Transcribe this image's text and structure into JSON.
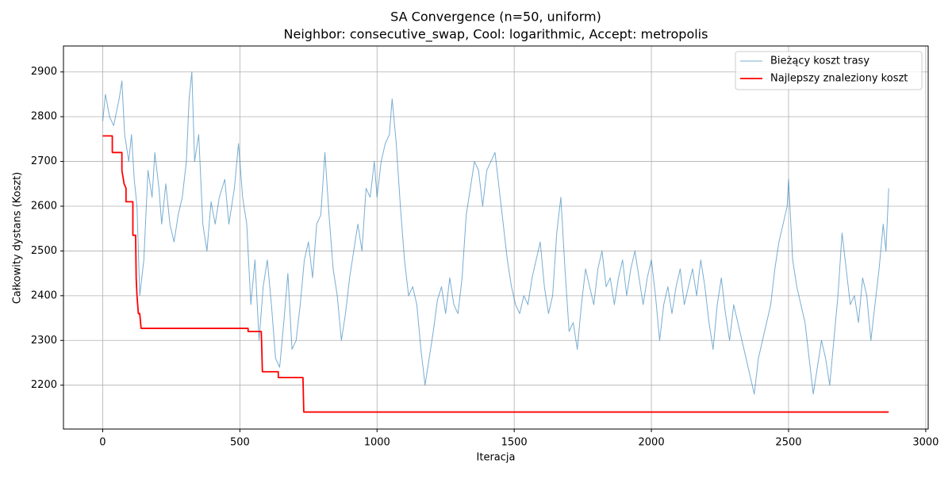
{
  "chart_data": {
    "type": "line",
    "title": "SA Convergence (n=50, uniform)",
    "subtitle": "Neighbor: consecutive_swap, Cool: logarithmic, Accept: metropolis",
    "xlabel": "Iteracja",
    "ylabel": "Całkowity dystans (Koszt)",
    "xlim": [
      -143,
      3009
    ],
    "ylim": [
      2102,
      2958
    ],
    "xticks": [
      0,
      500,
      1000,
      1500,
      2000,
      2500,
      3000
    ],
    "yticks": [
      2200,
      2300,
      2400,
      2500,
      2600,
      2700,
      2800,
      2900
    ],
    "grid": true,
    "legend": "upper right",
    "series": [
      {
        "name": "Bieżący koszt trasy",
        "color": "#1f77b4",
        "x": [
          0,
          10,
          25,
          40,
          60,
          70,
          80,
          95,
          105,
          115,
          125,
          135,
          150,
          165,
          180,
          190,
          205,
          215,
          230,
          245,
          260,
          275,
          290,
          305,
          315,
          325,
          335,
          350,
          365,
          380,
          395,
          410,
          425,
          445,
          460,
          480,
          495,
          510,
          525,
          540,
          555,
          570,
          585,
          600,
          615,
          630,
          645,
          660,
          675,
          690,
          705,
          720,
          735,
          750,
          765,
          780,
          795,
          810,
          825,
          840,
          855,
          870,
          885,
          900,
          915,
          930,
          945,
          960,
          975,
          990,
          1000,
          1015,
          1030,
          1045,
          1055,
          1070,
          1085,
          1100,
          1115,
          1130,
          1145,
          1160,
          1175,
          1190,
          1205,
          1220,
          1235,
          1250,
          1265,
          1280,
          1295,
          1310,
          1325,
          1340,
          1355,
          1370,
          1385,
          1400,
          1415,
          1430,
          1445,
          1460,
          1475,
          1490,
          1505,
          1520,
          1535,
          1550,
          1565,
          1580,
          1595,
          1610,
          1625,
          1640,
          1655,
          1670,
          1685,
          1700,
          1715,
          1730,
          1745,
          1760,
          1775,
          1790,
          1805,
          1820,
          1835,
          1850,
          1865,
          1880,
          1895,
          1910,
          1925,
          1940,
          1955,
          1970,
          1985,
          2000,
          2015,
          2030,
          2045,
          2060,
          2075,
          2090,
          2105,
          2120,
          2135,
          2150,
          2165,
          2180,
          2195,
          2210,
          2225,
          2240,
          2255,
          2270,
          2285,
          2300,
          2315,
          2330,
          2345,
          2360,
          2375,
          2390,
          2405,
          2420,
          2435,
          2450,
          2465,
          2480,
          2495,
          2500,
          2515,
          2530,
          2545,
          2560,
          2575,
          2590,
          2605,
          2620,
          2635,
          2650,
          2665,
          2680,
          2695,
          2710,
          2725,
          2740,
          2755,
          2770,
          2785,
          2800,
          2815,
          2830,
          2845,
          2855,
          2865
        ],
        "values": [
          2790,
          2850,
          2800,
          2780,
          2840,
          2880,
          2760,
          2700,
          2760,
          2660,
          2600,
          2400,
          2480,
          2680,
          2620,
          2720,
          2640,
          2560,
          2650,
          2560,
          2520,
          2580,
          2620,
          2700,
          2840,
          2900,
          2700,
          2760,
          2560,
          2500,
          2610,
          2560,
          2620,
          2660,
          2560,
          2640,
          2740,
          2620,
          2560,
          2380,
          2480,
          2300,
          2420,
          2480,
          2380,
          2260,
          2240,
          2340,
          2450,
          2280,
          2300,
          2380,
          2480,
          2520,
          2440,
          2560,
          2580,
          2720,
          2580,
          2460,
          2400,
          2300,
          2360,
          2440,
          2500,
          2560,
          2500,
          2640,
          2620,
          2700,
          2620,
          2700,
          2740,
          2760,
          2840,
          2740,
          2600,
          2480,
          2400,
          2420,
          2380,
          2280,
          2200,
          2260,
          2320,
          2390,
          2420,
          2360,
          2440,
          2380,
          2360,
          2440,
          2580,
          2640,
          2700,
          2680,
          2600,
          2680,
          2700,
          2720,
          2640,
          2560,
          2480,
          2420,
          2380,
          2360,
          2400,
          2380,
          2440,
          2480,
          2520,
          2420,
          2360,
          2400,
          2540,
          2620,
          2460,
          2320,
          2340,
          2280,
          2380,
          2460,
          2420,
          2380,
          2460,
          2500,
          2420,
          2440,
          2380,
          2440,
          2480,
          2400,
          2460,
          2500,
          2440,
          2380,
          2440,
          2480,
          2400,
          2300,
          2380,
          2420,
          2360,
          2420,
          2460,
          2380,
          2420,
          2460,
          2400,
          2480,
          2420,
          2340,
          2280,
          2380,
          2440,
          2360,
          2300,
          2380,
          2340,
          2300,
          2260,
          2220,
          2180,
          2260,
          2300,
          2340,
          2380,
          2460,
          2520,
          2560,
          2600,
          2660,
          2480,
          2420,
          2380,
          2340,
          2260,
          2180,
          2240,
          2300,
          2260,
          2200,
          2300,
          2400,
          2540,
          2460,
          2380,
          2400,
          2340,
          2440,
          2400,
          2300,
          2380,
          2460,
          2560,
          2500,
          2640
        ]
      },
      {
        "name": "Najlepszy znaleziony koszt",
        "color": "#ff0000",
        "x": [
          0,
          35,
          35,
          70,
          70,
          78,
          85,
          85,
          110,
          110,
          120,
          122,
          125,
          130,
          135,
          140,
          530,
          530,
          578,
          580,
          582,
          640,
          640,
          730,
          733,
          2865
        ],
        "values": [
          2757,
          2757,
          2720,
          2720,
          2680,
          2650,
          2640,
          2610,
          2610,
          2535,
          2535,
          2440,
          2400,
          2360,
          2360,
          2327,
          2327,
          2320,
          2320,
          2280,
          2230,
          2230,
          2217,
          2217,
          2140,
          2140
        ]
      }
    ]
  }
}
